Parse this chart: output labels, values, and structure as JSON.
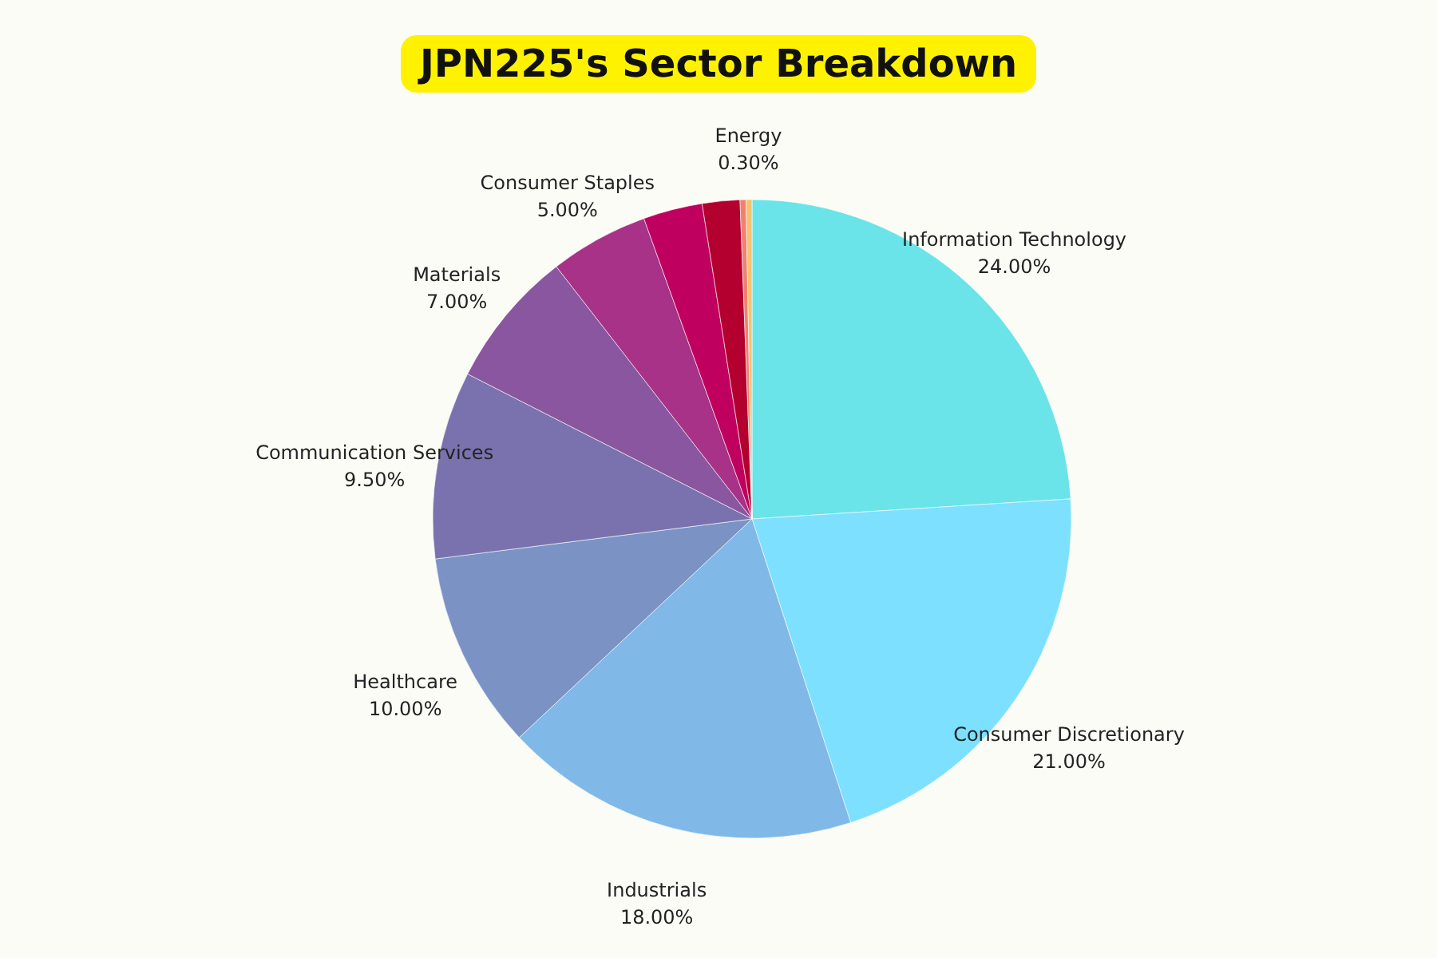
{
  "chart_data": {
    "type": "pie",
    "title": "JPN225's Sector Breakdown",
    "categories": [
      "Information Technology",
      "Consumer Discretionary",
      "Industrials",
      "Healthcare",
      "Communication Services",
      "Materials",
      "Consumer Staples",
      null,
      null,
      null,
      "Energy"
    ],
    "values": [
      24,
      21,
      18,
      10,
      9.5,
      7,
      5,
      3,
      1.9,
      0.3,
      0.3
    ],
    "value_labels": [
      "24.00%",
      "21.00%",
      "18.00%",
      "10.00%",
      "9.50%",
      "7.00%",
      "5.00%",
      null,
      null,
      null,
      "0.30%"
    ],
    "colors": [
      "#6ae4e8",
      "#7de0fe",
      "#80b8e8",
      "#7b92c4",
      "#7a72ae",
      "#8b56a0",
      "#a73287",
      "#c0005e",
      "#b3002e",
      "#f08070",
      "#f8c070"
    ]
  }
}
